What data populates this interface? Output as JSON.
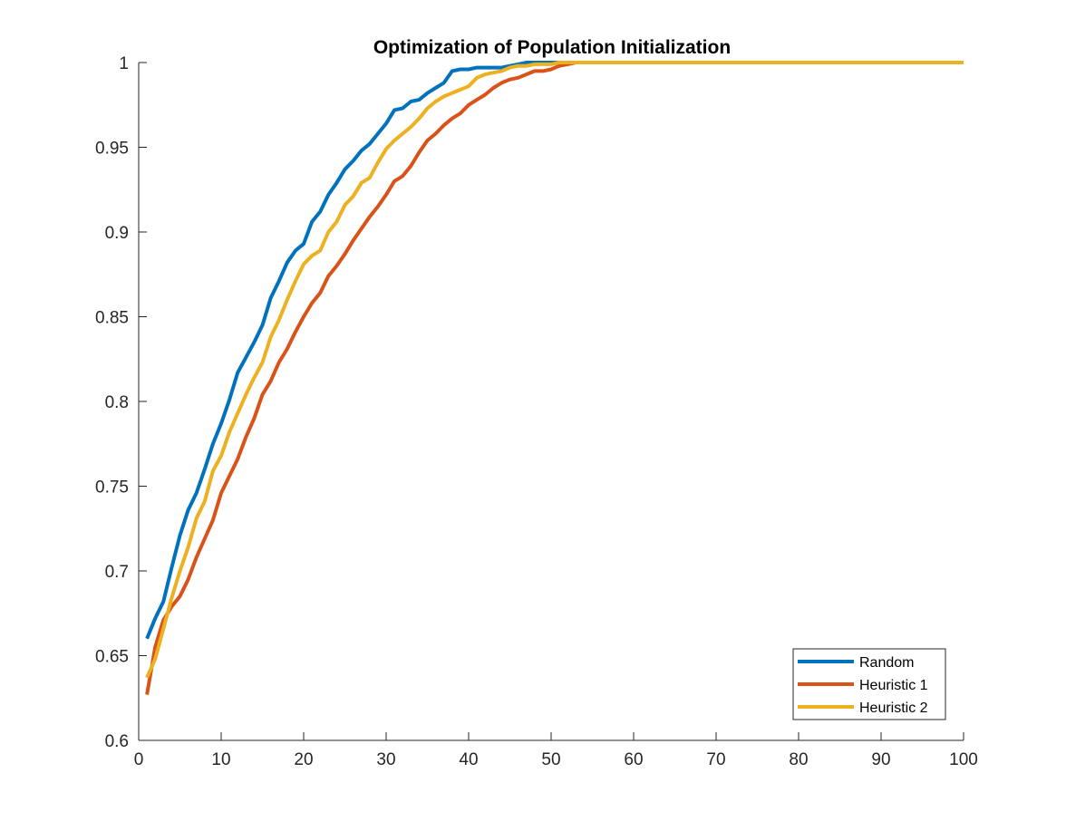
{
  "chart_data": {
    "type": "line",
    "title": "Optimization of Population Initialization",
    "xlabel": "",
    "ylabel": "",
    "xlim": [
      0,
      100
    ],
    "ylim": [
      0.6,
      1
    ],
    "xticks": [
      0,
      10,
      20,
      30,
      40,
      50,
      60,
      70,
      80,
      90,
      100
    ],
    "yticks": [
      0.6,
      0.65,
      0.7,
      0.75,
      0.8,
      0.85,
      0.9,
      0.95,
      1
    ],
    "xtick_labels": [
      "0",
      "10",
      "20",
      "30",
      "40",
      "50",
      "60",
      "70",
      "80",
      "90",
      "100"
    ],
    "ytick_labels": [
      "0.6",
      "0.65",
      "0.7",
      "0.75",
      "0.8",
      "0.85",
      "0.9",
      "0.95",
      "1"
    ],
    "grid": false,
    "legend_position": "bottom-right",
    "series": [
      {
        "name": "Random",
        "color": "#0072BD",
        "x": [
          1,
          2,
          3,
          4,
          5,
          6,
          7,
          8,
          9,
          10,
          11,
          12,
          13,
          14,
          15,
          16,
          17,
          18,
          19,
          20,
          21,
          22,
          23,
          24,
          25,
          26,
          27,
          28,
          29,
          30,
          31,
          32,
          33,
          34,
          35,
          36,
          37,
          38,
          39,
          40,
          41,
          42,
          43,
          44,
          45,
          46,
          47,
          48,
          49,
          50,
          100
        ],
        "y": [
          0.66,
          0.672,
          0.682,
          0.702,
          0.721,
          0.736,
          0.746,
          0.76,
          0.775,
          0.787,
          0.801,
          0.817,
          0.826,
          0.835,
          0.845,
          0.861,
          0.871,
          0.882,
          0.889,
          0.893,
          0.906,
          0.912,
          0.922,
          0.929,
          0.937,
          0.942,
          0.948,
          0.952,
          0.958,
          0.964,
          0.972,
          0.973,
          0.977,
          0.978,
          0.982,
          0.985,
          0.988,
          0.995,
          0.996,
          0.996,
          0.997,
          0.997,
          0.997,
          0.997,
          0.998,
          0.999,
          1.0,
          1.0,
          1.0,
          1.0,
          1.0
        ]
      },
      {
        "name": "Heuristic 1",
        "color": "#D95319",
        "x": [
          1,
          2,
          3,
          4,
          5,
          6,
          7,
          8,
          9,
          10,
          11,
          12,
          13,
          14,
          15,
          16,
          17,
          18,
          19,
          20,
          21,
          22,
          23,
          24,
          25,
          26,
          27,
          28,
          29,
          30,
          31,
          32,
          33,
          34,
          35,
          36,
          37,
          38,
          39,
          40,
          41,
          42,
          43,
          44,
          45,
          46,
          47,
          48,
          49,
          50,
          51,
          52,
          53,
          100
        ],
        "y": [
          0.627,
          0.655,
          0.671,
          0.679,
          0.685,
          0.695,
          0.708,
          0.719,
          0.73,
          0.746,
          0.756,
          0.766,
          0.779,
          0.79,
          0.804,
          0.812,
          0.823,
          0.831,
          0.841,
          0.85,
          0.858,
          0.864,
          0.874,
          0.88,
          0.887,
          0.895,
          0.902,
          0.909,
          0.915,
          0.922,
          0.93,
          0.933,
          0.939,
          0.947,
          0.954,
          0.958,
          0.963,
          0.967,
          0.97,
          0.975,
          0.978,
          0.981,
          0.985,
          0.988,
          0.99,
          0.991,
          0.993,
          0.995,
          0.995,
          0.996,
          0.998,
          0.999,
          1.0,
          1.0
        ]
      },
      {
        "name": "Heuristic 2",
        "color": "#EDB120",
        "x": [
          1,
          2,
          3,
          4,
          5,
          6,
          7,
          8,
          9,
          10,
          11,
          12,
          13,
          14,
          15,
          16,
          17,
          18,
          19,
          20,
          21,
          22,
          23,
          24,
          25,
          26,
          27,
          28,
          29,
          30,
          31,
          32,
          33,
          34,
          35,
          36,
          37,
          38,
          39,
          40,
          41,
          42,
          43,
          44,
          45,
          46,
          47,
          48,
          49,
          50,
          51,
          52,
          100
        ],
        "y": [
          0.637,
          0.648,
          0.666,
          0.684,
          0.7,
          0.714,
          0.731,
          0.741,
          0.759,
          0.768,
          0.782,
          0.793,
          0.804,
          0.814,
          0.823,
          0.838,
          0.848,
          0.86,
          0.871,
          0.881,
          0.886,
          0.889,
          0.9,
          0.906,
          0.916,
          0.921,
          0.929,
          0.932,
          0.941,
          0.949,
          0.954,
          0.958,
          0.962,
          0.967,
          0.973,
          0.977,
          0.98,
          0.982,
          0.984,
          0.986,
          0.991,
          0.993,
          0.994,
          0.995,
          0.997,
          0.998,
          0.998,
          0.999,
          0.999,
          0.999,
          1.0,
          1.0,
          1.0
        ]
      }
    ]
  }
}
